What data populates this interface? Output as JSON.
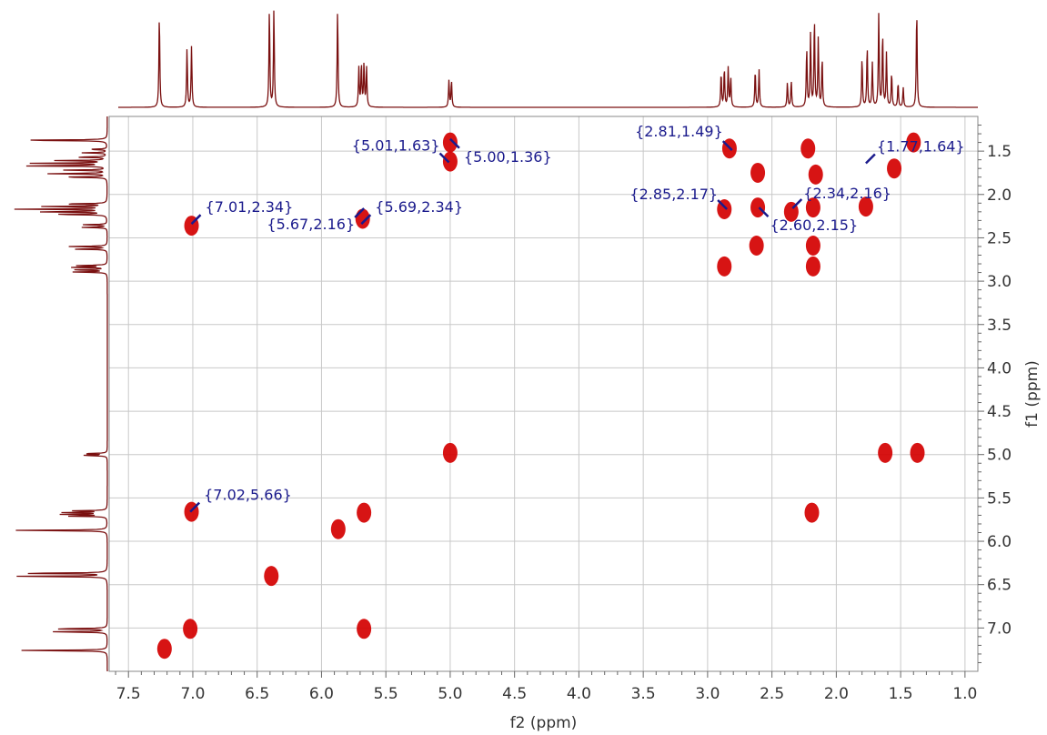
{
  "chart_data": {
    "type": "2d-nmr-cosy",
    "xlabel": "f2 (ppm)",
    "ylabel": "f1 (ppm)",
    "xlim": [
      7.65,
      0.9
    ],
    "ylim": [
      1.1,
      7.5
    ],
    "x_ticks": [
      "7.5",
      "7.0",
      "6.5",
      "6.0",
      "5.5",
      "5.0",
      "4.5",
      "4.0",
      "3.5",
      "3.0",
      "2.5",
      "2.0",
      "1.5",
      "1.0"
    ],
    "y_ticks": [
      "1.5",
      "2.0",
      "2.5",
      "3.0",
      "3.5",
      "4.0",
      "4.5",
      "5.0",
      "5.5",
      "6.0",
      "6.5",
      "7.0"
    ],
    "grid": true,
    "colors": {
      "cross_peak": "#d40000",
      "spectrum_1d": "#7a1010",
      "annotation": "#1a1a8c",
      "grid": "#c8c8c8"
    },
    "annotations": [
      {
        "text": "{7.01,2.34}",
        "x": 7.01,
        "y": 2.34
      },
      {
        "text": "{5.69,2.34}",
        "x": 5.69,
        "y": 2.34
      },
      {
        "text": "{5.67,2.16}",
        "x": 5.67,
        "y": 2.16
      },
      {
        "text": "{5.01,1.63}",
        "x": 5.01,
        "y": 1.63
      },
      {
        "text": "{5.00,1.36}",
        "x": 5.0,
        "y": 1.36
      },
      {
        "text": "{2.81,1.49}",
        "x": 2.81,
        "y": 1.49
      },
      {
        "text": "{2.85,2.17}",
        "x": 2.85,
        "y": 2.17
      },
      {
        "text": "{2.60,2.15}",
        "x": 2.6,
        "y": 2.15
      },
      {
        "text": "{2.34,2.16}",
        "x": 2.34,
        "y": 2.16
      },
      {
        "text": "{1.77,1.64}",
        "x": 1.77,
        "y": 1.64
      },
      {
        "text": "{7.02,5.66}",
        "x": 7.02,
        "y": 5.66
      }
    ],
    "peaks": [
      {
        "x": 7.22,
        "y": 7.24
      },
      {
        "x": 7.02,
        "y": 7.01
      },
      {
        "x": 7.01,
        "y": 5.66
      },
      {
        "x": 7.01,
        "y": 2.36
      },
      {
        "x": 6.39,
        "y": 6.4
      },
      {
        "x": 5.87,
        "y": 5.86
      },
      {
        "x": 5.67,
        "y": 7.01
      },
      {
        "x": 5.67,
        "y": 5.67
      },
      {
        "x": 5.68,
        "y": 2.28
      },
      {
        "x": 5.0,
        "y": 4.98
      },
      {
        "x": 5.0,
        "y": 1.4
      },
      {
        "x": 5.0,
        "y": 1.62
      },
      {
        "x": 2.83,
        "y": 1.47
      },
      {
        "x": 2.87,
        "y": 2.17
      },
      {
        "x": 2.87,
        "y": 2.83
      },
      {
        "x": 2.61,
        "y": 1.75
      },
      {
        "x": 2.61,
        "y": 2.15
      },
      {
        "x": 2.62,
        "y": 2.59
      },
      {
        "x": 2.35,
        "y": 2.2
      },
      {
        "x": 2.22,
        "y": 1.47
      },
      {
        "x": 2.16,
        "y": 1.77
      },
      {
        "x": 2.18,
        "y": 2.15
      },
      {
        "x": 2.18,
        "y": 2.59
      },
      {
        "x": 2.18,
        "y": 2.83
      },
      {
        "x": 2.19,
        "y": 5.67
      },
      {
        "x": 1.77,
        "y": 2.14
      },
      {
        "x": 1.62,
        "y": 4.98
      },
      {
        "x": 1.37,
        "y": 4.98
      },
      {
        "x": 1.55,
        "y": 1.7
      },
      {
        "x": 1.4,
        "y": 1.4
      }
    ],
    "spectrum_peaks": [
      {
        "ppm": 7.26,
        "h": 0.95
      },
      {
        "ppm": 7.045,
        "h": 0.6
      },
      {
        "ppm": 7.01,
        "h": 0.62
      },
      {
        "ppm": 6.405,
        "h": 1.0
      },
      {
        "ppm": 6.37,
        "h": 1.0
      },
      {
        "ppm": 5.875,
        "h": 1.0
      },
      {
        "ppm": 5.71,
        "h": 0.4
      },
      {
        "ppm": 5.69,
        "h": 0.44
      },
      {
        "ppm": 5.67,
        "h": 0.44
      },
      {
        "ppm": 5.65,
        "h": 0.4
      },
      {
        "ppm": 5.01,
        "h": 0.27
      },
      {
        "ppm": 4.99,
        "h": 0.27
      },
      {
        "ppm": 2.895,
        "h": 0.35
      },
      {
        "ppm": 2.87,
        "h": 0.4
      },
      {
        "ppm": 2.84,
        "h": 0.4
      },
      {
        "ppm": 2.82,
        "h": 0.3
      },
      {
        "ppm": 2.63,
        "h": 0.38
      },
      {
        "ppm": 2.6,
        "h": 0.38
      },
      {
        "ppm": 2.38,
        "h": 0.25
      },
      {
        "ppm": 2.35,
        "h": 0.27
      },
      {
        "ppm": 2.23,
        "h": 0.6
      },
      {
        "ppm": 2.2,
        "h": 0.75
      },
      {
        "ppm": 2.17,
        "h": 0.9
      },
      {
        "ppm": 2.14,
        "h": 0.7
      },
      {
        "ppm": 2.11,
        "h": 0.5
      },
      {
        "ppm": 1.8,
        "h": 0.5
      },
      {
        "ppm": 1.76,
        "h": 0.62
      },
      {
        "ppm": 1.72,
        "h": 0.45
      },
      {
        "ppm": 1.67,
        "h": 0.95
      },
      {
        "ppm": 1.64,
        "h": 0.75
      },
      {
        "ppm": 1.61,
        "h": 0.55
      },
      {
        "ppm": 1.57,
        "h": 0.35
      },
      {
        "ppm": 1.52,
        "h": 0.25
      },
      {
        "ppm": 1.48,
        "h": 0.2
      },
      {
        "ppm": 1.375,
        "h": 1.0
      }
    ]
  }
}
